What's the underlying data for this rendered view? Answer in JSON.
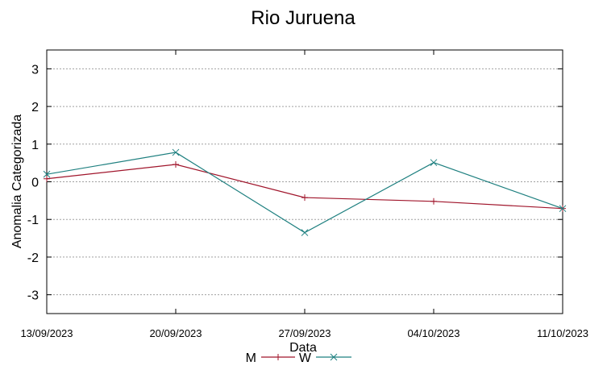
{
  "chart_data": {
    "type": "line",
    "title": "Rio Juruena",
    "xlabel": "Data",
    "ylabel": "Anomalia Categorizada",
    "categories": [
      "13/09/2023",
      "20/09/2023",
      "27/09/2023",
      "04/10/2023",
      "11/10/2023"
    ],
    "ylim": [
      -3.5,
      3.5
    ],
    "yticks": [
      3,
      2,
      1,
      0,
      -1,
      -2,
      -3
    ],
    "grid": true,
    "legend_position": "bottom-center",
    "series": [
      {
        "name": "M",
        "marker": "plus",
        "color": "#a0152b",
        "values": [
          0.08,
          0.46,
          -0.42,
          -0.52,
          -0.71
        ]
      },
      {
        "name": "W",
        "marker": "x",
        "color": "#1f8080",
        "values": [
          0.2,
          0.78,
          -1.35,
          0.51,
          -0.71
        ]
      }
    ]
  }
}
